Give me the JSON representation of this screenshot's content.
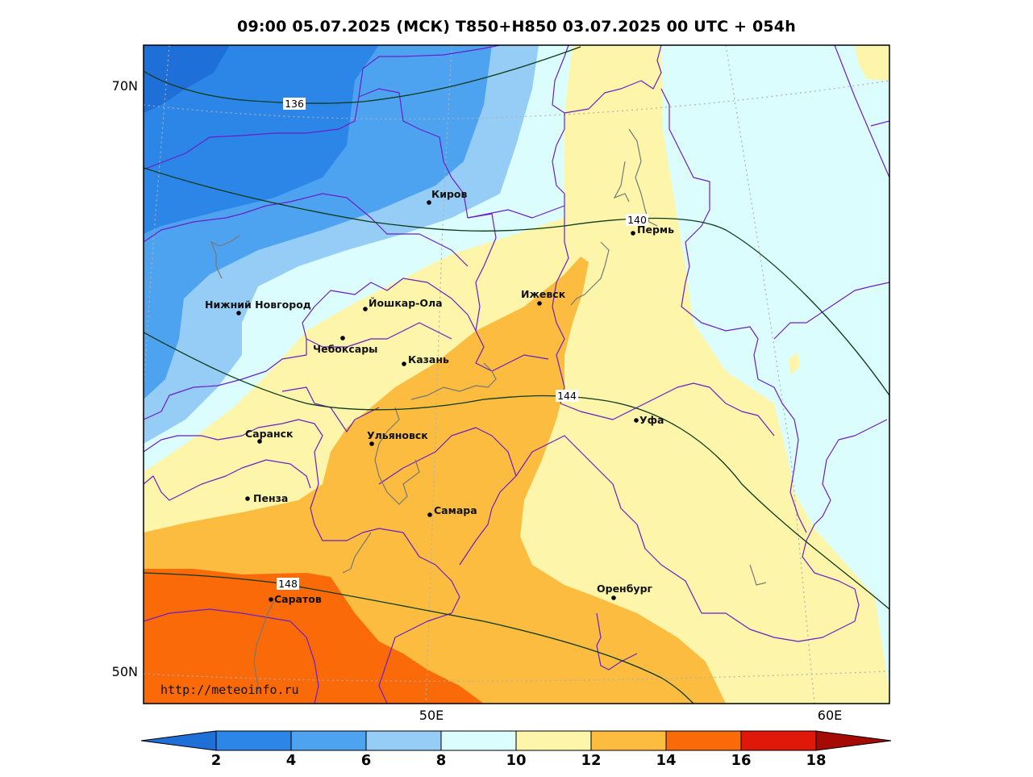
{
  "title": "09:00 05.07.2025 (МСК) T850+H850 03.07.2025 00 UTC + 054h",
  "watermark": "http://meteoinfo.ru",
  "axes": {
    "lat_labels": [
      "70N",
      "50N"
    ],
    "lon_labels": [
      "50E",
      "60E"
    ]
  },
  "isohypses": [
    "136",
    "140",
    "144",
    "148"
  ],
  "cities": [
    {
      "name": "Киров"
    },
    {
      "name": "Пермь"
    },
    {
      "name": "Нижний Новгород"
    },
    {
      "name": "Йошкар-Ола"
    },
    {
      "name": "Ижевск"
    },
    {
      "name": "Чебоксары"
    },
    {
      "name": "Казань"
    },
    {
      "name": "Уфа"
    },
    {
      "name": "Саранск"
    },
    {
      "name": "Ульяновск"
    },
    {
      "name": "Пенза"
    },
    {
      "name": "Самара"
    },
    {
      "name": "Оренбург"
    },
    {
      "name": "Саратов"
    }
  ],
  "colorbar": {
    "ticks": [
      "2",
      "4",
      "6",
      "8",
      "10",
      "12",
      "14",
      "16",
      "18"
    ],
    "colors": [
      "#1f6fd8",
      "#2b86e8",
      "#4ea3f0",
      "#96cdf7",
      "#dcfdfd",
      "#fdf6aa",
      "#fbbc3f",
      "#fb6a08",
      "#e0180a",
      "#a50a05"
    ]
  }
}
